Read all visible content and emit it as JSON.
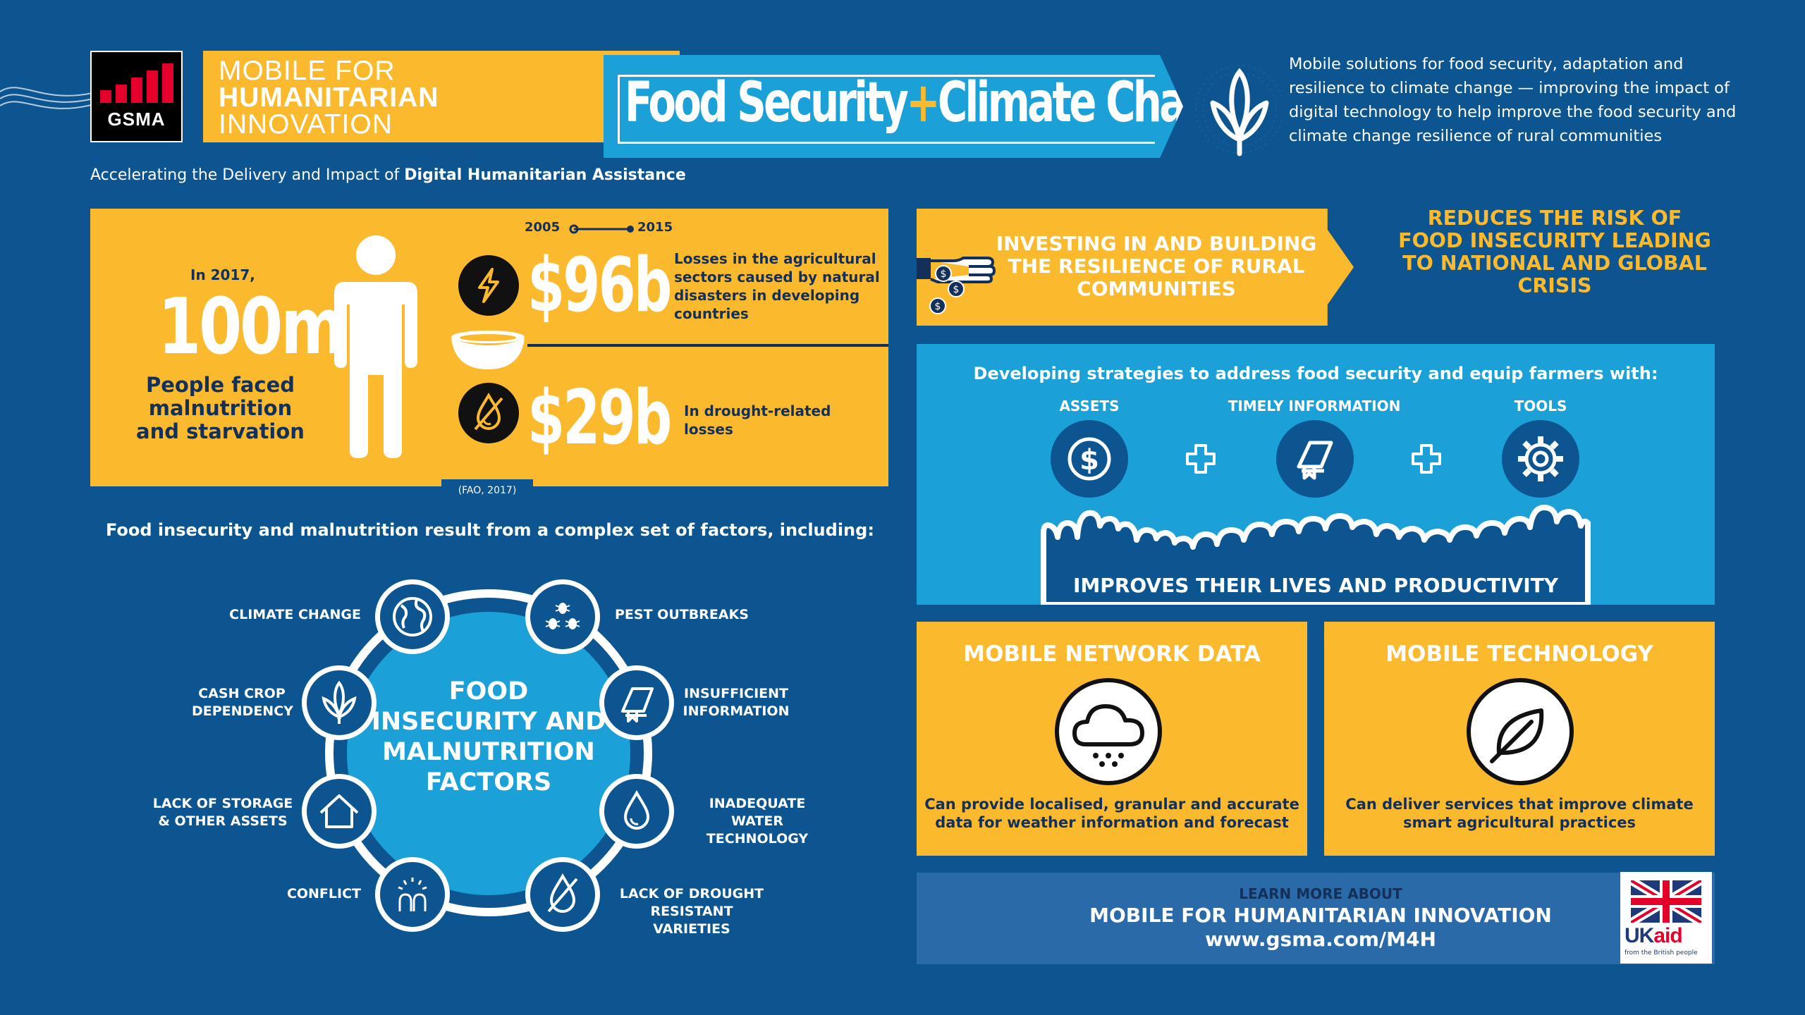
{
  "header": {
    "gsma_wordmark": "GSMA",
    "m4h_line1": "MOBILE FOR",
    "m4h_line2": "HUMANITARIAN",
    "m4h_line3": "INNOVATION",
    "title_part1": "Food Security",
    "title_plus": "+",
    "title_part2": "Climate Change",
    "intro": "Mobile solutions for food security, adaptation and resilience to climate change — improving the impact of digital technology to help improve the food security and climate change resilience of rural communities",
    "tagline_prefix": "Accelerating the Delivery and Impact of ",
    "tagline_bold": "Digital Humanitarian Assistance"
  },
  "stats": {
    "in_year": "In 2017,",
    "people_count": "100m",
    "people_desc": "People faced malnutrition and starvation",
    "year_start": "2005",
    "year_end": "2015",
    "loss_total": "$96b",
    "loss_total_desc": "Losses in the agricultural sectors caused by natural disasters in developing countries",
    "loss_drought": "$29b",
    "loss_drought_desc": "In drought-related losses",
    "source": "(FAO, 2017)"
  },
  "factors": {
    "heading": "Food insecurity and malnutrition result from a complex set of factors, including:",
    "center_title": "FOOD INSECURITY AND MALNUTRITION FACTORS",
    "items": [
      {
        "label": "CLIMATE CHANGE",
        "icon": "globe-icon"
      },
      {
        "label": "PEST OUTBREAKS",
        "icon": "bugs-icon"
      },
      {
        "label": "CASH CROP\nDEPENDENCY",
        "icon": "corn-icon"
      },
      {
        "label": "INSUFFICIENT\nINFORMATION",
        "icon": "book-icon"
      },
      {
        "label": "LACK OF STORAGE\n& OTHER ASSETS",
        "icon": "house-icon"
      },
      {
        "label": "INADEQUATE WATER\nTECHNOLOGY",
        "icon": "water-drop-icon"
      },
      {
        "label": "CONFLICT",
        "icon": "conflict-icon"
      },
      {
        "label": "LACK OF DROUGHT\nRESISTANT VARIETIES",
        "icon": "drought-icon"
      }
    ]
  },
  "resilience": {
    "invest_text": "INVESTING IN AND BUILDING THE RESILIENCE OF RURAL COMMUNITIES",
    "risk_text": "REDUCES THE RISK OF FOOD INSECURITY LEADING TO NATIONAL AND GLOBAL CRISIS"
  },
  "strategies": {
    "heading": "Developing strategies to address food security and equip farmers with:",
    "items": [
      {
        "label": "ASSETS",
        "icon": "dollar-icon"
      },
      {
        "label": "TIMELY INFORMATION",
        "icon": "book-icon"
      },
      {
        "label": "TOOLS",
        "icon": "gear-icon"
      }
    ],
    "result": "IMPROVES THEIR LIVES AND PRODUCTIVITY"
  },
  "mobile": {
    "network_title": "MOBILE NETWORK DATA",
    "network_desc": "Can provide localised, granular and accurate data for weather information and forecast",
    "tech_title": "MOBILE TECHNOLOGY",
    "tech_desc": "Can deliver services that improve climate smart agricultural practices"
  },
  "footer": {
    "learn_small": "LEARN MORE ABOUT",
    "learn_big": "MOBILE FOR HUMANITARIAN INNOVATION",
    "url": "www.gsma.com/M4H",
    "ukaid_uk": "UK",
    "ukaid_aid": "aid",
    "ukaid_tag": "from the British people"
  },
  "colors": {
    "background": "#0c5590",
    "yellow": "#fbb92e",
    "cyan": "#1ba1d8",
    "navy_text": "#13305a",
    "gsma_red": "#e4002b"
  }
}
